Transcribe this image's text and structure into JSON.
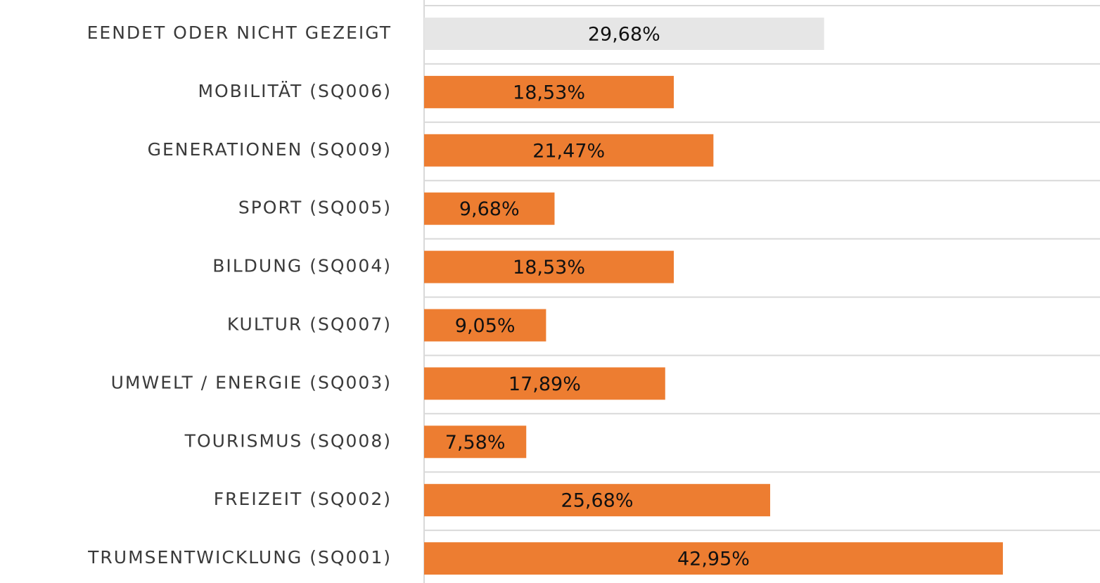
{
  "chart_data": {
    "type": "bar",
    "orientation": "horizontal",
    "categories": [
      "EENDET ODER NICHT GEZEIGT",
      "MOBILITÄT (SQ006)",
      "GENERATIONEN (SQ009)",
      "SPORT (SQ005)",
      "BILDUNG (SQ004)",
      "KULTUR (SQ007)",
      "UMWELT / ENERGIE (SQ003)",
      "TOURISMUS (SQ008)",
      "FREIZEIT (SQ002)",
      "TRUMSENTWICKLUNG (SQ001)"
    ],
    "values": [
      29.68,
      18.53,
      21.47,
      9.68,
      18.53,
      9.05,
      17.89,
      7.58,
      25.68,
      42.95
    ],
    "value_labels": [
      "29,68%",
      "18,53%",
      "21,47%",
      "9,68%",
      "18,53%",
      "9,05%",
      "17,89%",
      "7,58%",
      "25,68%",
      "42,95%"
    ],
    "colors": [
      "#e6e6e6",
      "#ed7d31",
      "#ed7d31",
      "#ed7d31",
      "#ed7d31",
      "#ed7d31",
      "#ed7d31",
      "#ed7d31",
      "#ed7d31",
      "#ed7d31"
    ],
    "xlim": [
      0,
      50
    ]
  }
}
